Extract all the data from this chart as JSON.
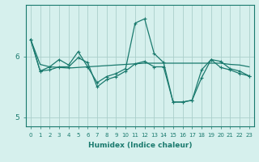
{
  "xlabel": "Humidex (Indice chaleur)",
  "background_color": "#d6f0ed",
  "grid_color": "#aacfcb",
  "line_color": "#1a7a6e",
  "x_values": [
    0,
    1,
    2,
    3,
    4,
    5,
    6,
    7,
    8,
    9,
    10,
    11,
    12,
    13,
    14,
    15,
    16,
    17,
    18,
    19,
    20,
    21,
    22,
    23
  ],
  "line1_smooth": [
    6.28,
    5.87,
    5.83,
    5.82,
    5.81,
    5.82,
    5.83,
    5.84,
    5.85,
    5.86,
    5.87,
    5.88,
    5.89,
    5.89,
    5.89,
    5.89,
    5.89,
    5.89,
    5.89,
    5.89,
    5.89,
    5.87,
    5.86,
    5.83
  ],
  "line2_spiky": [
    6.28,
    5.76,
    5.83,
    5.95,
    5.86,
    6.08,
    5.83,
    5.57,
    5.67,
    5.72,
    5.8,
    6.55,
    6.62,
    6.05,
    5.9,
    5.25,
    5.25,
    5.28,
    5.78,
    5.95,
    5.82,
    5.78,
    5.72,
    5.68
  ],
  "line3_mid": [
    6.28,
    5.76,
    5.78,
    5.83,
    5.83,
    5.98,
    5.9,
    5.5,
    5.62,
    5.67,
    5.76,
    5.88,
    5.92,
    5.83,
    5.83,
    5.25,
    5.25,
    5.28,
    5.65,
    5.95,
    5.92,
    5.8,
    5.76,
    5.68
  ],
  "ylim": [
    4.85,
    6.85
  ],
  "yticks": [
    5,
    6
  ],
  "xlim": [
    -0.5,
    23.5
  ]
}
